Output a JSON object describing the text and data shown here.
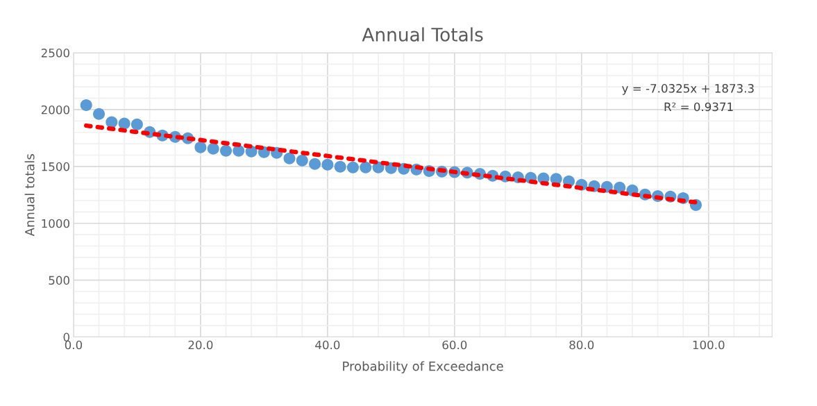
{
  "chart_data": {
    "type": "scatter",
    "title": "Annual Totals",
    "xlabel": "Probability of Exceedance",
    "ylabel": "Annual totals",
    "x": [
      2,
      4,
      6,
      8,
      10,
      12,
      14,
      16,
      18,
      20,
      22,
      24,
      26,
      28,
      30,
      32,
      34,
      36,
      38,
      40,
      42,
      44,
      46,
      48,
      50,
      52,
      54,
      56,
      58,
      60,
      62,
      64,
      66,
      68,
      70,
      72,
      74,
      76,
      78,
      80,
      82,
      84,
      86,
      88,
      90,
      92,
      94,
      96,
      98
    ],
    "series": [
      {
        "color": "#5b9bd5",
        "marker": "circle",
        "values": [
          2040,
          1962,
          1890,
          1877,
          1870,
          1803,
          1773,
          1760,
          1748,
          1669,
          1656,
          1638,
          1638,
          1632,
          1626,
          1620,
          1571,
          1553,
          1522,
          1516,
          1498,
          1491,
          1491,
          1491,
          1485,
          1479,
          1473,
          1460,
          1455,
          1450,
          1445,
          1435,
          1418,
          1412,
          1405,
          1400,
          1395,
          1390,
          1369,
          1339,
          1326,
          1320,
          1314,
          1290,
          1253,
          1240,
          1235,
          1222,
          1161
        ]
      },
      {
        "type": "line",
        "color": "#ff0000",
        "line_style": "dotted",
        "x": [
          2,
          98
        ],
        "values": [
          1859.2,
          1184.1
        ]
      }
    ],
    "annotations": [
      "y = -7.0325x + 1873.3",
      "R² = 0.9371"
    ],
    "xlim": [
      0,
      110
    ],
    "ylim": [
      0,
      2500
    ],
    "xticks": [
      {
        "value": 0,
        "label": "0.0"
      },
      {
        "value": 20,
        "label": "20.0"
      },
      {
        "value": 40,
        "label": "40.0"
      },
      {
        "value": 60,
        "label": "60.0"
      },
      {
        "value": 80,
        "label": "80.0"
      },
      {
        "value": 100,
        "label": "100.0"
      }
    ],
    "yticks": [
      0,
      500,
      1000,
      1500,
      2000,
      2500
    ],
    "grid": true,
    "legend": false
  }
}
